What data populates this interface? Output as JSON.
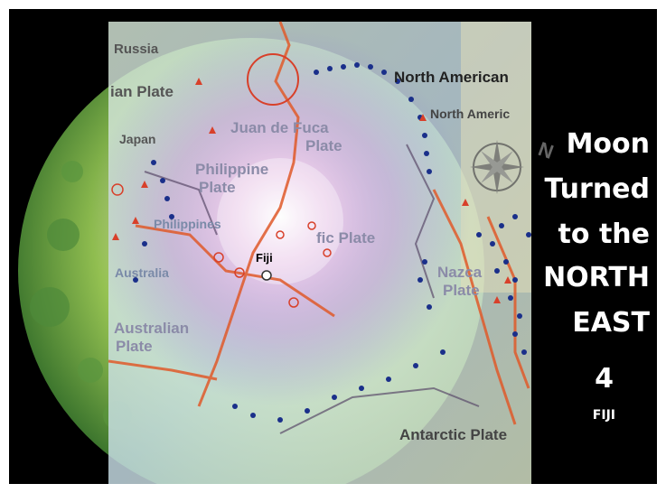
{
  "map": {
    "labels": {
      "russia": "Russia",
      "ian_plate": "ian Plate",
      "north_american_1": "North American",
      "north_american_2": "North Americ",
      "juan_de_fuca_1": "Juan de Fuca",
      "juan_de_fuca_2": "Plate",
      "japan": "Japan",
      "philippine_plate_1": "Philippine",
      "philippine_plate_2": "Plate",
      "philippines": "Philippines",
      "pacific_plate": "fic Plate",
      "australia": "Australia",
      "australian_plate_1": "Australian",
      "australian_plate_2": "Plate",
      "nazca_1": "Nazca",
      "nazca_2": "Plate",
      "antarctic": "Antarctic Plate"
    },
    "marker_label": "Fiji"
  },
  "caption": {
    "line1": "Moon",
    "line2": "Turned",
    "line3": "to the",
    "line4": "NORTH",
    "line5": "EAST",
    "number": "4",
    "place": "FIJI"
  },
  "compass": {
    "direction_letter": "N"
  },
  "colors": {
    "plate_boundary": "#e05a2a",
    "trench_dots": "#1a2f8a",
    "volcano_triangles": "#d8402a",
    "moon_green": "#8fcf4a",
    "map_overlay": "#cfe3d6",
    "caption_text": "#ffffff"
  }
}
